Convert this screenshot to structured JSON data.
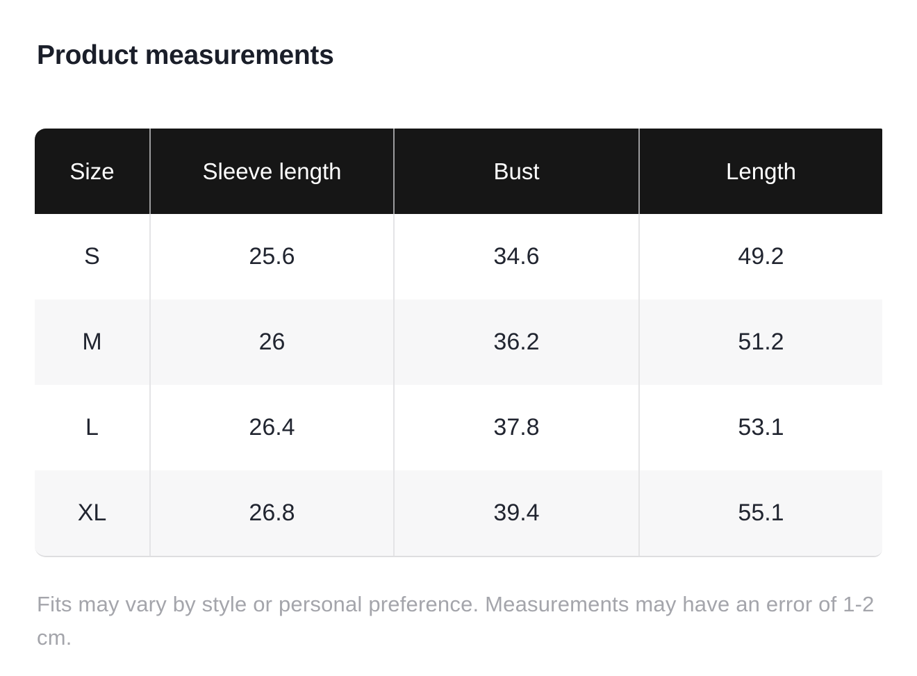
{
  "page": {
    "title": "Product measurements"
  },
  "table": {
    "headers": [
      "Size",
      "Sleeve length",
      "Bust",
      "Length"
    ],
    "rows": [
      {
        "cells": [
          "S",
          "25.6",
          "34.6",
          "49.2"
        ]
      },
      {
        "cells": [
          "M",
          "26",
          "36.2",
          "51.2"
        ]
      },
      {
        "cells": [
          "L",
          "26.4",
          "37.8",
          "53.1"
        ]
      },
      {
        "cells": [
          "XL",
          "26.8",
          "39.4",
          "55.1"
        ]
      }
    ]
  },
  "footnote": "Fits may vary by style or personal preference. Measurements may have an error of 1-2 cm.",
  "colors": {
    "header_bg": "#161616",
    "header_text": "#ffffff",
    "row_bg": "#ffffff",
    "row_alt_bg": "#f7f7f8",
    "divider": "#e4e4e6",
    "header_divider": "#9c9c9e",
    "body_text": "#212530",
    "title_text": "#1a1e29",
    "footnote_text": "#a4a5ab",
    "table_bottom_border": "#dedee0"
  }
}
